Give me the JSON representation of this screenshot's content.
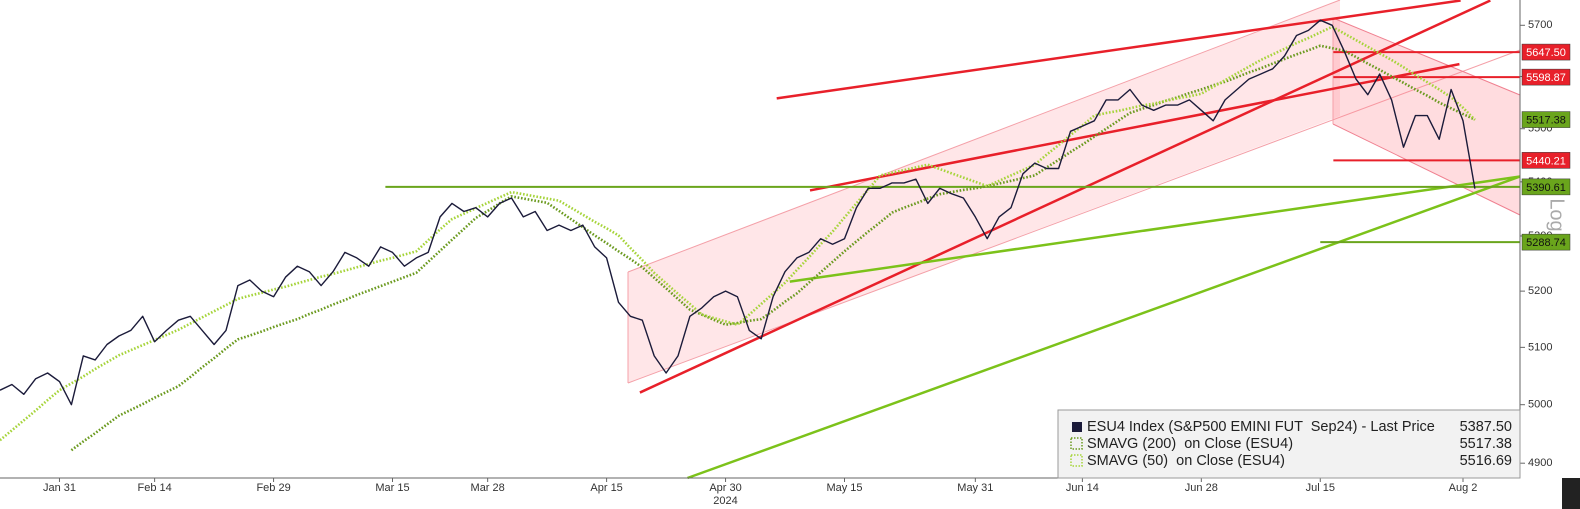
{
  "chart_data": {
    "type": "line",
    "log_scale": true,
    "ylim": [
      4875,
      5750
    ],
    "yticks": [
      4900,
      5000,
      5100,
      5200,
      5300,
      5400,
      5500,
      5600,
      5700
    ],
    "x_sublabel": "2024",
    "axis_note": "Log",
    "categories": [
      null,
      null,
      null,
      null,
      null,
      "Jan 31",
      null,
      null,
      null,
      null,
      null,
      null,
      null,
      "Feb 14",
      null,
      null,
      null,
      null,
      null,
      null,
      null,
      null,
      null,
      "Feb 29",
      null,
      null,
      null,
      null,
      null,
      null,
      null,
      null,
      null,
      "Mar 15",
      null,
      null,
      null,
      null,
      null,
      null,
      null,
      "Mar 28",
      null,
      null,
      null,
      null,
      null,
      null,
      null,
      null,
      null,
      "Apr 15",
      null,
      null,
      null,
      null,
      null,
      null,
      null,
      null,
      null,
      "Apr 30",
      null,
      null,
      null,
      null,
      null,
      null,
      null,
      null,
      null,
      "May 15",
      null,
      null,
      null,
      null,
      null,
      null,
      null,
      null,
      null,
      null,
      "May 31",
      null,
      null,
      null,
      null,
      null,
      null,
      null,
      null,
      "Jun 14",
      null,
      null,
      null,
      null,
      null,
      null,
      null,
      null,
      null,
      "Jun 28",
      null,
      null,
      null,
      null,
      null,
      null,
      null,
      null,
      null,
      "Jul 15",
      null,
      null,
      null,
      null,
      null,
      null,
      null,
      null,
      null,
      null,
      null,
      "Aug 2",
      null
    ],
    "series": [
      {
        "name": "ESU4 Index (S&P500 EMINI FUT  Sep24) - Last Price",
        "legend_value": "5387.50",
        "color": "#1b1b3a",
        "style": "solid",
        "values": [
          5025,
          5035,
          5018,
          5045,
          5055,
          5040,
          5000,
          5085,
          5078,
          5105,
          5120,
          5130,
          5155,
          5110,
          5130,
          5148,
          5155,
          5130,
          5105,
          5130,
          5210,
          5220,
          5200,
          5190,
          5225,
          5245,
          5235,
          5210,
          5235,
          5270,
          5260,
          5245,
          5280,
          5270,
          5245,
          5260,
          5270,
          5335,
          5360,
          5345,
          5352,
          5335,
          5360,
          5370,
          5335,
          5345,
          5310,
          5320,
          5310,
          5320,
          5280,
          5260,
          5180,
          5155,
          5148,
          5085,
          5055,
          5085,
          5155,
          5170,
          5190,
          5200,
          5190,
          5130,
          5115,
          5190,
          5235,
          5260,
          5270,
          5295,
          5285,
          5295,
          5352,
          5388,
          5388,
          5398,
          5398,
          5405,
          5360,
          5388,
          5378,
          5370,
          5335,
          5295,
          5335,
          5352,
          5415,
          5435,
          5425,
          5425,
          5495,
          5505,
          5515,
          5555,
          5555,
          5575,
          5545,
          5535,
          5545,
          5545,
          5555,
          5535,
          5515,
          5555,
          5575,
          5595,
          5605,
          5615,
          5640,
          5680,
          5690,
          5710,
          5700,
          5650,
          5595,
          5565,
          5605,
          5555,
          5465,
          5525,
          5525,
          5480,
          5575,
          5515,
          5387.5
        ]
      },
      {
        "name": "SMAVG (200)  on Close (ESU4)",
        "legend_value": "5517.38",
        "color": "#6b9a1f",
        "style": "dotted",
        "values": [
          null,
          null,
          null,
          null,
          null,
          null,
          4922,
          4937,
          4951,
          4966,
          4981,
          4991,
          5001,
          5012,
          5022,
          5032,
          5048,
          5065,
          5081,
          5098,
          5114,
          5121,
          5128,
          5136,
          5143,
          5150,
          5159,
          5167,
          5176,
          5184,
          5193,
          5201,
          5209,
          5217,
          5225,
          5233,
          5253,
          5273,
          5293,
          5313,
          5333,
          5346,
          5360,
          5373,
          5369,
          5365,
          5361,
          5346,
          5331,
          5316,
          5301,
          5287,
          5272,
          5258,
          5243,
          5224,
          5205,
          5186,
          5167,
          5158,
          5149,
          5140,
          5143,
          5147,
          5150,
          5165,
          5181,
          5196,
          5215,
          5234,
          5253,
          5272,
          5290,
          5308,
          5325,
          5343,
          5352,
          5360,
          5369,
          5377,
          5381,
          5385,
          5388,
          5392,
          5397,
          5402,
          5407,
          5412,
          5427,
          5441,
          5456,
          5470,
          5485,
          5500,
          5515,
          5530,
          5538,
          5545,
          5553,
          5560,
          5568,
          5575,
          5583,
          5590,
          5599,
          5608,
          5616,
          5625,
          5634,
          5643,
          5651,
          5660,
          5655,
          5650,
          5638,
          5625,
          5613,
          5600,
          5588,
          5575,
          5563,
          5550,
          5539,
          5528,
          5517.38
        ]
      },
      {
        "name": "SMAVG (50)  on Close (ESU4)",
        "legend_value": "5516.69",
        "color": "#a6d43a",
        "style": "dotted",
        "values": [
          4939,
          4956,
          4973,
          4990,
          5008,
          5025,
          5037,
          5049,
          5062,
          5074,
          5086,
          5095,
          5104,
          5113,
          5122,
          5131,
          5142,
          5153,
          5164,
          5175,
          5186,
          5192,
          5197,
          5203,
          5208,
          5214,
          5220,
          5226,
          5231,
          5237,
          5243,
          5249,
          5255,
          5260,
          5266,
          5272,
          5292,
          5312,
          5331,
          5341,
          5351,
          5361,
          5371,
          5381,
          5377,
          5373,
          5369,
          5365,
          5352,
          5339,
          5326,
          5314,
          5301,
          5278,
          5256,
          5233,
          5214,
          5195,
          5177,
          5158,
          5152,
          5146,
          5140,
          5158,
          5177,
          5196,
          5215,
          5238,
          5261,
          5285,
          5308,
          5334,
          5360,
          5386,
          5412,
          5417,
          5422,
          5427,
          5432,
          5424,
          5416,
          5408,
          5400,
          5392,
          5402,
          5412,
          5422,
          5432,
          5451,
          5469,
          5488,
          5506,
          5525,
          5530,
          5534,
          5539,
          5544,
          5548,
          5553,
          5558,
          5562,
          5567,
          5580,
          5593,
          5606,
          5619,
          5632,
          5643,
          5654,
          5665,
          5675,
          5686,
          5697,
          5684,
          5671,
          5658,
          5645,
          5632,
          5618,
          5603,
          5589,
          5575,
          5560,
          5540,
          5516.69
        ]
      }
    ],
    "levels": [
      {
        "value": 5647.5,
        "label": "5647.50",
        "color": "#e8202a",
        "from": 112.1
      },
      {
        "value": 5598.87,
        "label": "5598.87",
        "color": "#e8202a",
        "from": 112.1
      },
      {
        "value": 5517.38,
        "label": "5517.38",
        "color": "#6aa51c"
      },
      {
        "value": 5440.21,
        "label": "5440.21",
        "color": "#e8202a",
        "from": 112.1
      },
      {
        "value": 5390.61,
        "label": "5390.61",
        "color": "#6aa51c",
        "from": 32.4
      },
      {
        "value": 5288.74,
        "label": "5288.74",
        "color": "#6aa51c",
        "from": 111
      }
    ],
    "trendlines": [
      {
        "color": "#e8202a",
        "from": [
          65.3,
          5558
        ],
        "to": [
          122.8,
          5749
        ]
      },
      {
        "color": "#e8202a",
        "from": [
          53.8,
          5021
        ],
        "to": [
          125.3,
          5749
        ]
      },
      {
        "color": "#e8202a",
        "from": [
          68.1,
          5384
        ],
        "to": [
          122.7,
          5624
        ]
      },
      {
        "color": "#7cc21a",
        "from": [
          66.4,
          5217
        ],
        "to": [
          127.8,
          5410
        ]
      },
      {
        "color": "#7cc21a",
        "from": [
          57.8,
          4875
        ],
        "to": [
          127.8,
          5410
        ]
      }
    ]
  }
}
